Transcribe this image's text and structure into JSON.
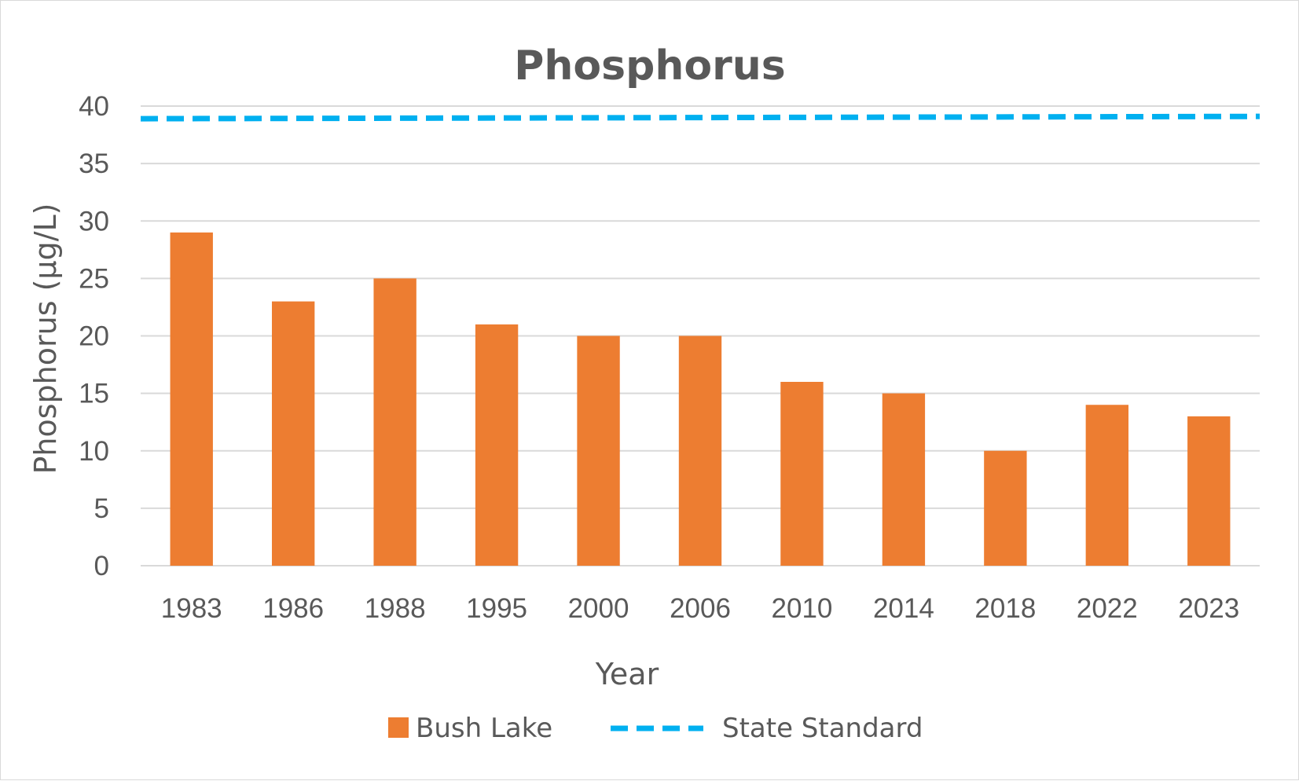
{
  "chart_data": {
    "type": "bar",
    "title": "Phosphorus",
    "xlabel": "Year",
    "ylabel": "Phosphorus (µg/L)",
    "ylim": [
      0,
      40
    ],
    "yticks": [
      0,
      5,
      10,
      15,
      20,
      25,
      30,
      35,
      40
    ],
    "grid": true,
    "legend_position": "bottom",
    "categories": [
      "1983",
      "1986",
      "1988",
      "1995",
      "2000",
      "2006",
      "2010",
      "2014",
      "2018",
      "2022",
      "2023"
    ],
    "series": [
      {
        "name": "Bush Lake",
        "type": "bar",
        "color": "#ED7D31",
        "values": [
          29,
          23,
          25,
          21,
          20,
          20,
          16,
          15,
          10,
          14,
          13
        ]
      },
      {
        "name": "State Standard",
        "type": "line",
        "style": "dashed",
        "color": "#00B0F0",
        "values": [
          38.9,
          38.92,
          38.94,
          38.96,
          38.98,
          39.0,
          39.02,
          39.04,
          39.06,
          39.08,
          39.1
        ]
      }
    ],
    "colors": {
      "text": "#595959",
      "grid": "#d9d9d9"
    }
  }
}
